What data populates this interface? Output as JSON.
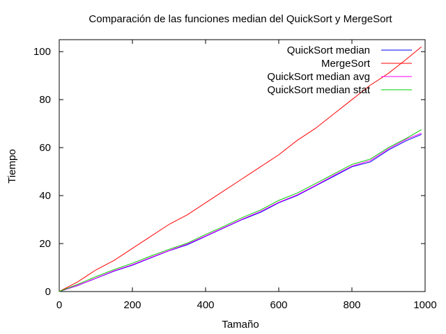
{
  "chart_data": {
    "type": "line",
    "title": "Comparación de las funciones median del QuickSort y MergeSort",
    "xlabel": "Tamaño",
    "ylabel": "Tiempo",
    "xlim": [
      0,
      1000
    ],
    "ylim": [
      0,
      105
    ],
    "xticks": [
      0,
      200,
      400,
      600,
      800,
      1000
    ],
    "yticks": [
      0,
      20,
      40,
      60,
      80,
      100
    ],
    "grid": false,
    "legend_position": "top-right",
    "x": [
      0,
      50,
      100,
      150,
      200,
      250,
      300,
      350,
      400,
      450,
      500,
      550,
      600,
      650,
      700,
      750,
      800,
      850,
      900,
      950,
      990
    ],
    "series": [
      {
        "name": "QuickSort median",
        "color": "#0000ff",
        "values": [
          0,
          2.5,
          5.5,
          8.5,
          11,
          14,
          17,
          19.5,
          23,
          26.5,
          30,
          33,
          37,
          40,
          44,
          48,
          52,
          54,
          59,
          63,
          65.5
        ]
      },
      {
        "name": "MergeSort",
        "color": "#ff0000",
        "values": [
          0,
          4,
          9,
          13,
          18,
          23,
          28,
          32,
          37,
          42,
          47,
          52,
          57,
          63,
          68,
          74,
          80,
          86,
          91,
          97,
          102
        ]
      },
      {
        "name": "QuickSort median avg",
        "color": "#ff00ff",
        "values": [
          0,
          2.6,
          5.6,
          8.7,
          11.2,
          14.2,
          17.1,
          19.8,
          23.2,
          26.7,
          30.2,
          33.4,
          37.2,
          40.3,
          44.2,
          48.4,
          52.3,
          54.6,
          59.5,
          63.6,
          66
        ]
      },
      {
        "name": "QuickSort median stat",
        "color": "#00cc00",
        "values": [
          0,
          3,
          6.2,
          9.2,
          11.8,
          14.8,
          17.6,
          20.2,
          23.8,
          27.2,
          30.8,
          34,
          38,
          41,
          45,
          49,
          53,
          55.2,
          60,
          64,
          67.5
        ]
      }
    ]
  }
}
